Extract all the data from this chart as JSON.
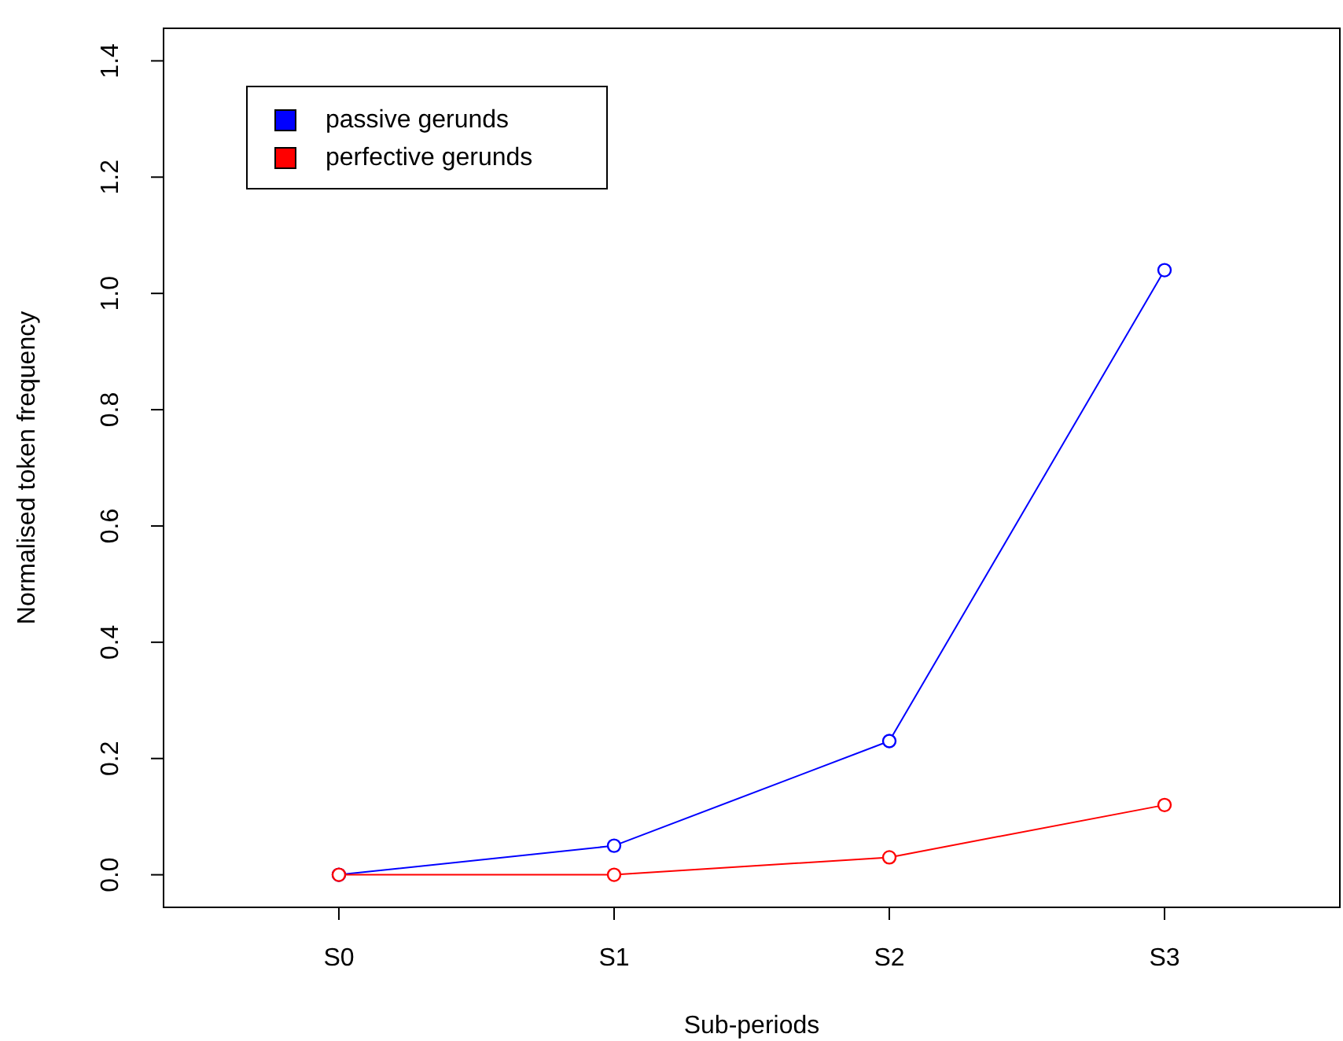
{
  "chart_data": {
    "type": "line",
    "xlabel": "Sub-periods",
    "ylabel": "Normalised token frequency",
    "categories": [
      "S0",
      "S1",
      "S2",
      "S3"
    ],
    "series": [
      {
        "name": "passive gerunds",
        "color": "#0000ff",
        "values": [
          0,
          0.05,
          0.23,
          1.04
        ]
      },
      {
        "name": "perfective gerunds",
        "color": "#ff0000",
        "values": [
          0,
          0,
          0.03,
          0.12
        ]
      }
    ],
    "ylim": [
      -0.056,
      1.456
    ],
    "yticks": [
      {
        "value": 0,
        "label": "0.0"
      },
      0.2,
      0.4,
      0.6,
      0.8,
      {
        "value": 1,
        "label": "1.0"
      },
      1.2,
      1.4
    ],
    "grid": false,
    "legend": "top left",
    "marker": "circle",
    "line_style": "solid"
  }
}
